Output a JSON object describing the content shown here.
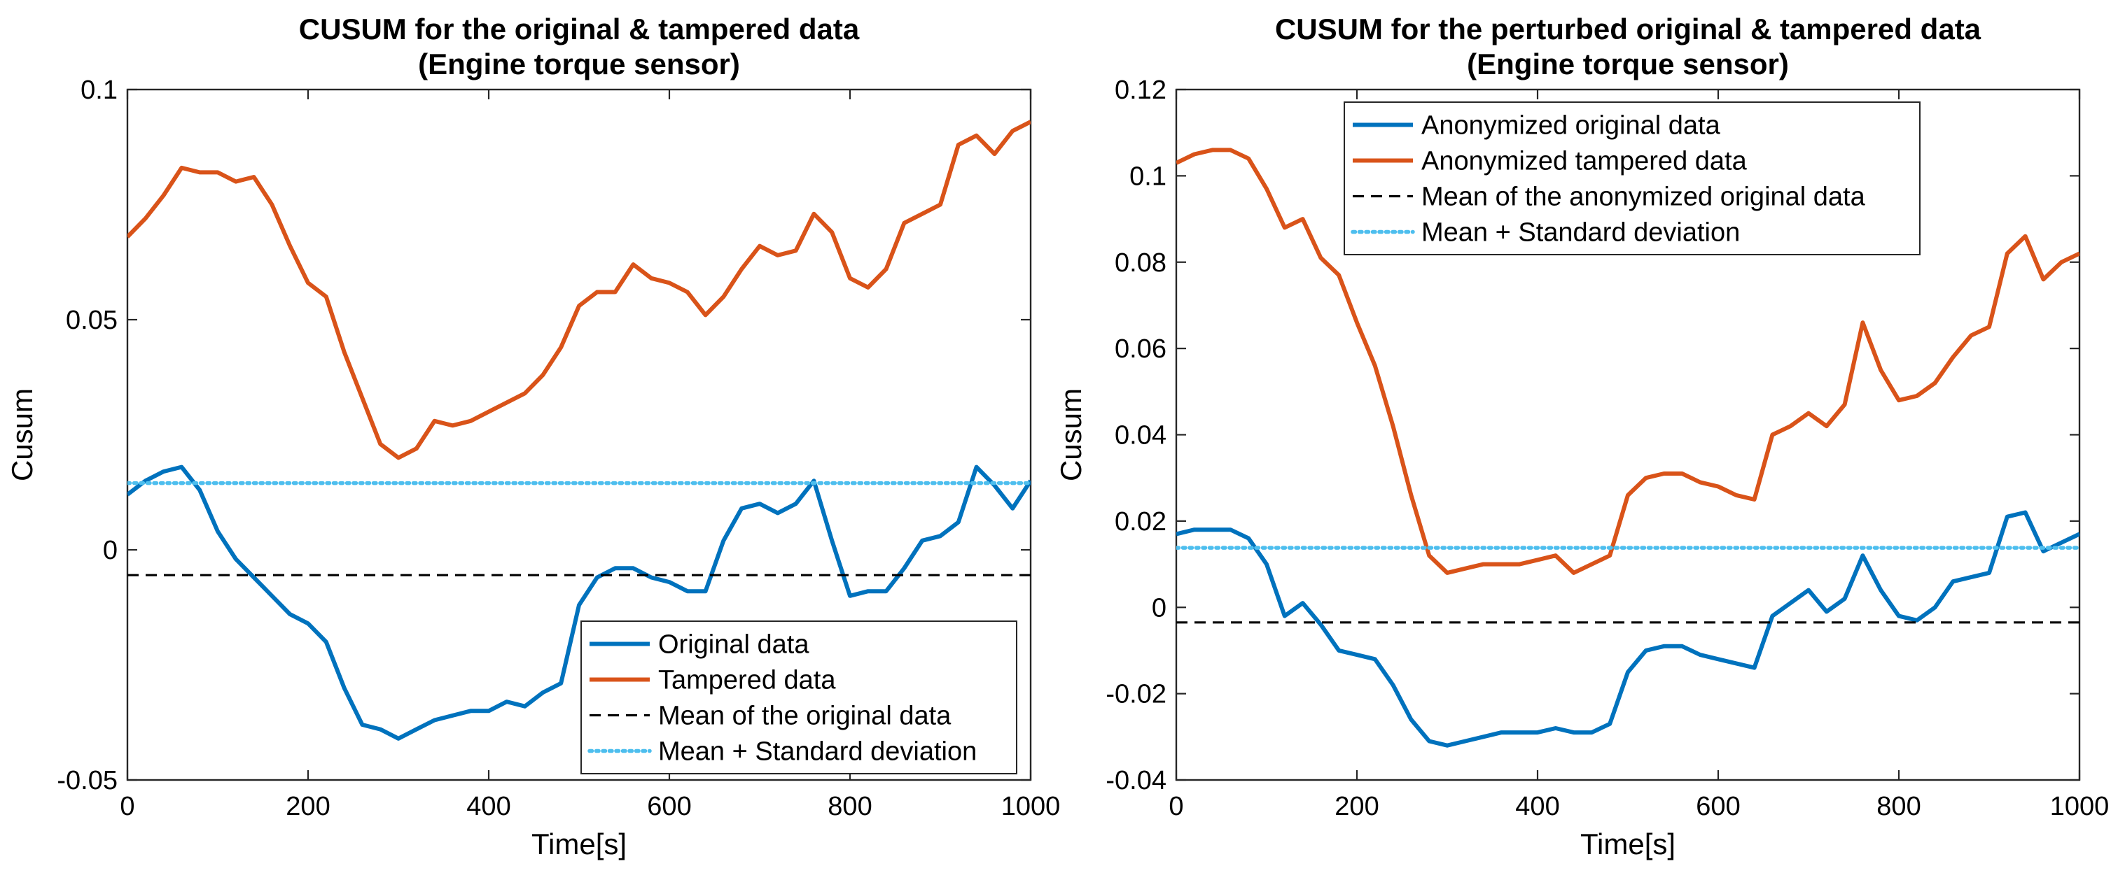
{
  "chart_data": [
    {
      "type": "line",
      "title": [
        "CUSUM for the original & tampered data",
        "(Engine torque sensor)"
      ],
      "xlabel": "Time[s]",
      "ylabel": "Cusum",
      "xlim": [
        0,
        1000
      ],
      "ylim": [
        -0.05,
        0.1
      ],
      "xticks": [
        0,
        200,
        400,
        600,
        800,
        1000
      ],
      "xtick_labels": [
        "0",
        "200",
        "400",
        "600",
        "800",
        "1000"
      ],
      "yticks": [
        -0.05,
        0,
        0.05,
        0.1
      ],
      "ytick_labels": [
        "-0.05",
        "0",
        "0.05",
        "0.1"
      ],
      "grid": false,
      "legend_position": "bottom-right",
      "series": [
        {
          "name": "Original data",
          "color": "#0072BD",
          "style": "solid",
          "x": [
            0,
            20,
            40,
            60,
            80,
            100,
            120,
            140,
            160,
            180,
            200,
            220,
            240,
            260,
            280,
            300,
            320,
            340,
            360,
            380,
            400,
            420,
            440,
            460,
            480,
            500,
            520,
            540,
            560,
            580,
            600,
            620,
            640,
            660,
            680,
            700,
            720,
            740,
            760,
            780,
            800,
            820,
            840,
            860,
            880,
            900,
            920,
            940,
            960,
            980,
            1000
          ],
          "values": [
            0.012,
            0.015,
            0.017,
            0.018,
            0.013,
            0.004,
            -0.002,
            -0.006,
            -0.01,
            -0.014,
            -0.016,
            -0.02,
            -0.03,
            -0.038,
            -0.039,
            -0.041,
            -0.039,
            -0.037,
            -0.036,
            -0.035,
            -0.035,
            -0.033,
            -0.034,
            -0.031,
            -0.029,
            -0.012,
            -0.006,
            -0.004,
            -0.004,
            -0.006,
            -0.007,
            -0.009,
            -0.009,
            0.002,
            0.009,
            0.01,
            0.008,
            0.01,
            0.015,
            0.002,
            -0.01,
            -0.009,
            -0.009,
            -0.004,
            0.002,
            0.003,
            0.006,
            0.018,
            0.014,
            0.009,
            0.015
          ]
        },
        {
          "name": "Tampered data",
          "color": "#D95319",
          "style": "solid",
          "x": [
            0,
            20,
            40,
            60,
            80,
            100,
            120,
            140,
            160,
            180,
            200,
            220,
            240,
            260,
            280,
            300,
            320,
            340,
            360,
            380,
            400,
            420,
            440,
            460,
            480,
            500,
            520,
            540,
            560,
            580,
            600,
            620,
            640,
            660,
            680,
            700,
            720,
            740,
            760,
            780,
            800,
            820,
            840,
            860,
            880,
            900,
            920,
            940,
            960,
            980,
            1000
          ],
          "values": [
            0.068,
            0.072,
            0.077,
            0.083,
            0.082,
            0.082,
            0.08,
            0.081,
            0.075,
            0.066,
            0.058,
            0.055,
            0.043,
            0.033,
            0.023,
            0.02,
            0.022,
            0.028,
            0.027,
            0.028,
            0.03,
            0.032,
            0.034,
            0.038,
            0.044,
            0.053,
            0.056,
            0.056,
            0.062,
            0.059,
            0.058,
            0.056,
            0.051,
            0.055,
            0.061,
            0.066,
            0.064,
            0.065,
            0.073,
            0.069,
            0.059,
            0.057,
            0.061,
            0.071,
            0.073,
            0.075,
            0.088,
            0.09,
            0.086,
            0.091,
            0.093
          ]
        },
        {
          "name": "Mean of the original data",
          "color": "#000000",
          "style": "dashed",
          "x": [
            0,
            1000
          ],
          "values": [
            -0.0055,
            -0.0055
          ]
        },
        {
          "name": "Mean + Standard deviation",
          "color": "#4DBEEE",
          "style": "dotted",
          "x": [
            0,
            1000
          ],
          "values": [
            0.0145,
            0.0145
          ]
        }
      ]
    },
    {
      "type": "line",
      "title": [
        "CUSUM for the perturbed original & tampered data",
        "(Engine torque sensor)"
      ],
      "xlabel": "Time[s]",
      "ylabel": "Cusum",
      "xlim": [
        0,
        1000
      ],
      "ylim": [
        -0.04,
        0.12
      ],
      "xticks": [
        0,
        200,
        400,
        600,
        800,
        1000
      ],
      "xtick_labels": [
        "0",
        "200",
        "400",
        "600",
        "800",
        "1000"
      ],
      "yticks": [
        -0.04,
        -0.02,
        0,
        0.02,
        0.04,
        0.06,
        0.08,
        0.1,
        0.12
      ],
      "ytick_labels": [
        "-0.04",
        "-0.02",
        "0",
        "0.02",
        "0.04",
        "0.06",
        "0.08",
        "0.1",
        "0.12"
      ],
      "grid": false,
      "legend_position": "top-center",
      "series": [
        {
          "name": "Anonymized original data",
          "color": "#0072BD",
          "style": "solid",
          "x": [
            0,
            20,
            40,
            60,
            80,
            100,
            120,
            140,
            160,
            180,
            200,
            220,
            240,
            260,
            280,
            300,
            320,
            340,
            360,
            380,
            400,
            420,
            440,
            460,
            480,
            500,
            520,
            540,
            560,
            580,
            600,
            620,
            640,
            660,
            680,
            700,
            720,
            740,
            760,
            780,
            800,
            820,
            840,
            860,
            880,
            900,
            920,
            940,
            960,
            980,
            1000
          ],
          "values": [
            0.017,
            0.018,
            0.018,
            0.018,
            0.016,
            0.01,
            -0.002,
            0.001,
            -0.004,
            -0.01,
            -0.011,
            -0.012,
            -0.018,
            -0.026,
            -0.031,
            -0.032,
            -0.031,
            -0.03,
            -0.029,
            -0.029,
            -0.029,
            -0.028,
            -0.029,
            -0.029,
            -0.027,
            -0.015,
            -0.01,
            -0.009,
            -0.009,
            -0.011,
            -0.012,
            -0.013,
            -0.014,
            -0.002,
            0.001,
            0.004,
            -0.001,
            0.002,
            0.012,
            0.004,
            -0.002,
            -0.003,
            0.0,
            0.006,
            0.007,
            0.008,
            0.021,
            0.022,
            0.013,
            0.015,
            0.017
          ]
        },
        {
          "name": "Anonymized tampered data",
          "color": "#D95319",
          "style": "solid",
          "x": [
            0,
            20,
            40,
            60,
            80,
            100,
            120,
            140,
            160,
            180,
            200,
            220,
            240,
            260,
            280,
            300,
            320,
            340,
            360,
            380,
            400,
            420,
            440,
            460,
            480,
            500,
            520,
            540,
            560,
            580,
            600,
            620,
            640,
            660,
            680,
            700,
            720,
            740,
            760,
            780,
            800,
            820,
            840,
            860,
            880,
            900,
            920,
            940,
            960,
            980,
            1000
          ],
          "values": [
            0.103,
            0.105,
            0.106,
            0.106,
            0.104,
            0.097,
            0.088,
            0.09,
            0.081,
            0.077,
            0.066,
            0.056,
            0.042,
            0.026,
            0.012,
            0.008,
            0.009,
            0.01,
            0.01,
            0.01,
            0.011,
            0.012,
            0.008,
            0.01,
            0.012,
            0.026,
            0.03,
            0.031,
            0.031,
            0.029,
            0.028,
            0.026,
            0.025,
            0.04,
            0.042,
            0.045,
            0.042,
            0.047,
            0.066,
            0.055,
            0.048,
            0.049,
            0.052,
            0.058,
            0.063,
            0.065,
            0.082,
            0.086,
            0.076,
            0.08,
            0.082
          ]
        },
        {
          "name": "Mean of the anonymized original data",
          "color": "#000000",
          "style": "dashed",
          "x": [
            0,
            1000
          ],
          "values": [
            -0.0035,
            -0.0035
          ]
        },
        {
          "name": "Mean + Standard deviation",
          "color": "#4DBEEE",
          "style": "dotted",
          "x": [
            0,
            1000
          ],
          "values": [
            0.0138,
            0.0138
          ]
        }
      ]
    }
  ]
}
